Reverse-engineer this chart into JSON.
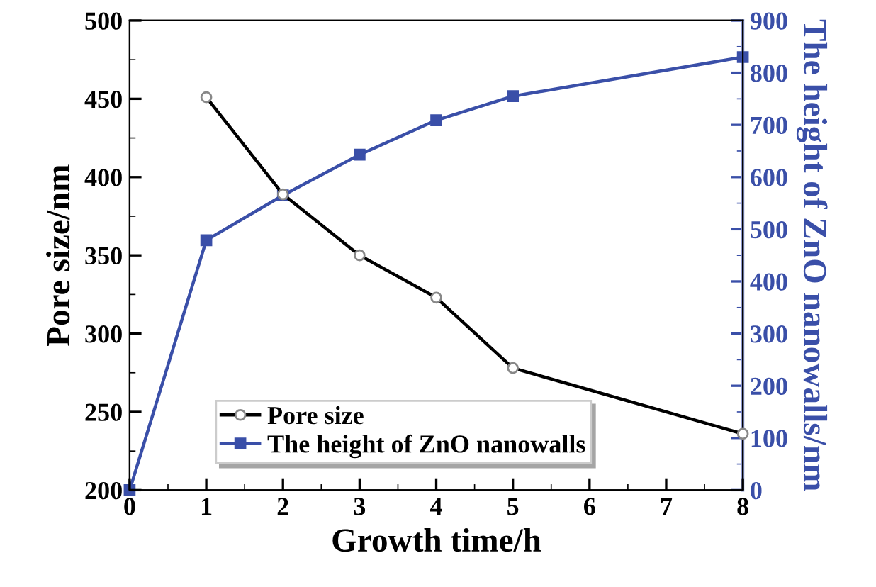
{
  "chart_data": {
    "type": "line",
    "xlabel": "Growth time/h",
    "ylabel": "Pore size/nm",
    "y2label": "The height of ZnO nanowalls/nm",
    "x": [
      0,
      1,
      2,
      3,
      4,
      5,
      8
    ],
    "series": [
      {
        "name": "Pore size",
        "color": "#000000",
        "marker": "circle",
        "values": [
          null,
          451,
          389,
          350,
          323,
          278,
          236
        ]
      },
      {
        "name": "The height of ZnO nanowalls",
        "color": "#3a4fa8",
        "marker": "square",
        "axis": "y2",
        "values": [
          0,
          479,
          565,
          643,
          709,
          755,
          830
        ]
      }
    ],
    "xlim": [
      0,
      8
    ],
    "xticks": [
      0,
      1,
      2,
      3,
      4,
      5,
      6,
      7,
      8
    ],
    "ylim": [
      200,
      500
    ],
    "yticks": [
      200,
      250,
      300,
      350,
      400,
      450,
      500
    ],
    "y2lim": [
      0,
      900
    ],
    "y2ticks": [
      0,
      100,
      200,
      300,
      400,
      500,
      600,
      700,
      800,
      900
    ],
    "grid": false,
    "legend": "bottom left"
  }
}
